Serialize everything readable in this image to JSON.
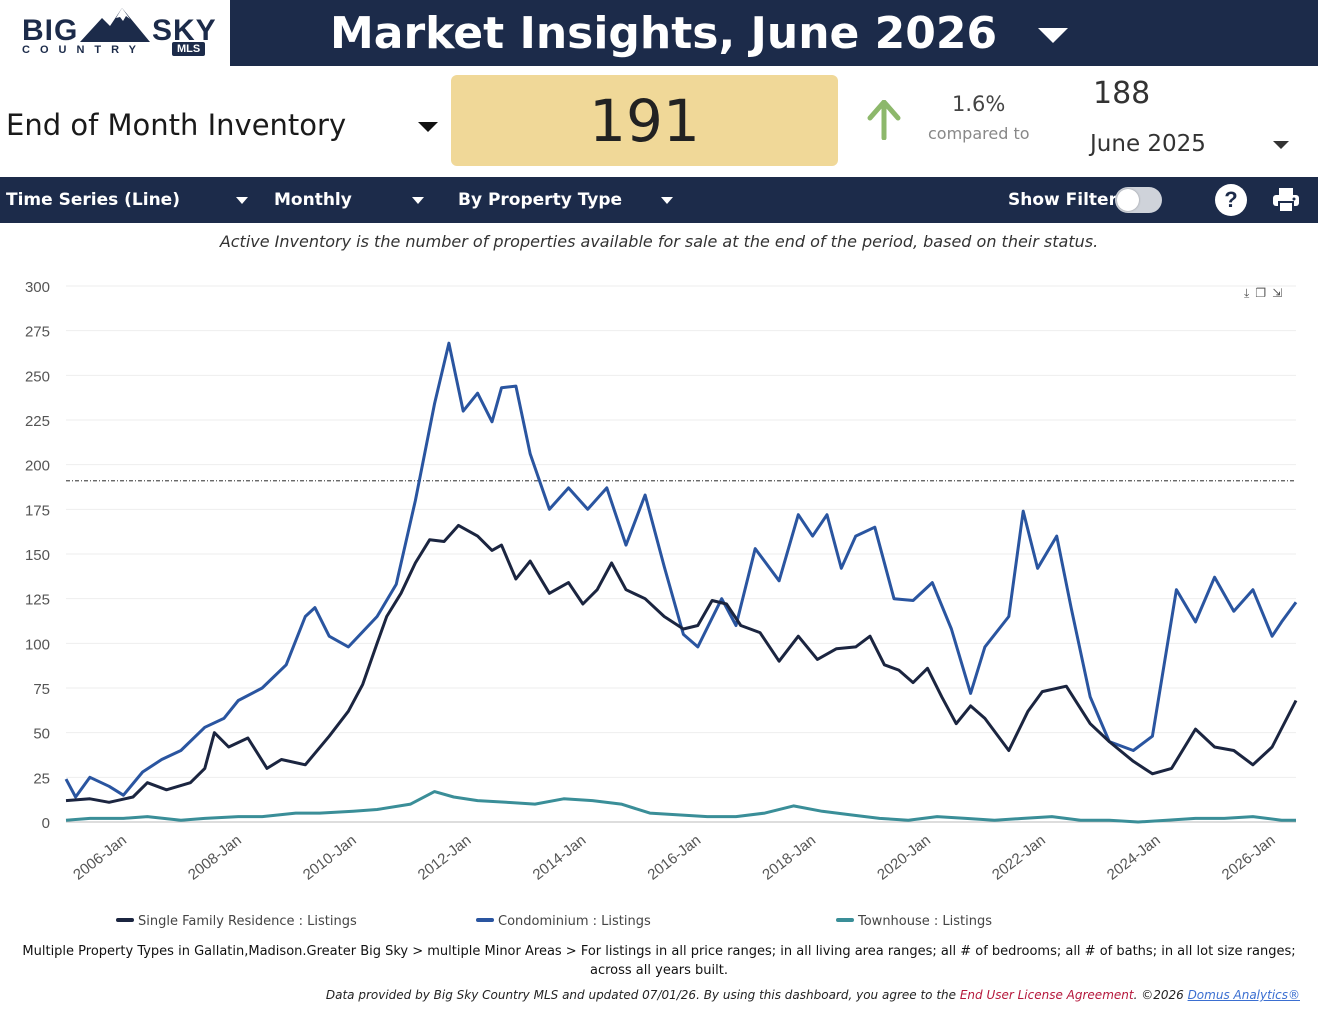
{
  "logo": {
    "big": "BIG",
    "sky": "SKY",
    "country": "COUNTRY",
    "mls": "MLS"
  },
  "header": {
    "title": "Market Insights, June 2026"
  },
  "metric": {
    "label": "End of Month Inventory",
    "value": "191",
    "change_pct": "1.6%",
    "compared_to": "compared to",
    "compare_value": "188",
    "compare_period": "June 2025"
  },
  "toolbar": {
    "chart_type": "Time Series (Line)",
    "interval": "Monthly",
    "grouping": "By Property Type",
    "show_filters": "Show Filters:",
    "help": "?"
  },
  "subtitle": "Active Inventory is the number of properties available for sale at the end of the period, based on their status.",
  "footer": {
    "description": "Multiple Property Types in Gallatin,Madison.Greater Big Sky > multiple Minor Areas > For listings in all price ranges; in all living area ranges; all # of bedrooms; all # of baths; in all lot size ranges; across all years built.",
    "credit_prefix": "Data provided by Big Sky Country MLS and updated 07/01/26.  By using this dashboard, you agree to the ",
    "eula": "End User License Agreement",
    "credit_mid": ".  ©2026 ",
    "domus": "Domus Analytics®"
  },
  "colors": {
    "navy": "#1c2b4a",
    "single_family": "#1b2540",
    "condominium": "#2a55a0",
    "townhouse": "#3a8e98",
    "value_box": "#f0d898",
    "arrow": "#8db86b"
  },
  "chart_data": {
    "type": "line",
    "ylim": [
      0,
      300
    ],
    "y_ticks": [
      0,
      25,
      50,
      75,
      100,
      125,
      150,
      175,
      200,
      225,
      250,
      275,
      300
    ],
    "x_tick_labels": [
      "2006-Jan",
      "2008-Jan",
      "2010-Jan",
      "2012-Jan",
      "2014-Jan",
      "2016-Jan",
      "2018-Jan",
      "2020-Jan",
      "2022-Jan",
      "2024-Jan",
      "2026-Jan"
    ],
    "x_start": "2005-Jan",
    "x_end": "2026-Jun",
    "reference_line": 191,
    "legend_position": "bottom",
    "series": [
      {
        "name": "Single Family Residence : Listings",
        "points": [
          [
            "2005-Jan",
            12
          ],
          [
            "2005-Jun",
            13
          ],
          [
            "2005-Oct",
            11
          ],
          [
            "2006-Mar",
            14
          ],
          [
            "2006-Jun",
            22
          ],
          [
            "2006-Oct",
            18
          ],
          [
            "2007-Mar",
            22
          ],
          [
            "2007-Jun",
            30
          ],
          [
            "2007-Aug",
            50
          ],
          [
            "2007-Nov",
            42
          ],
          [
            "2008-Mar",
            47
          ],
          [
            "2008-Jul",
            30
          ],
          [
            "2008-Oct",
            35
          ],
          [
            "2009-Mar",
            32
          ],
          [
            "2009-Aug",
            48
          ],
          [
            "2009-Dec",
            62
          ],
          [
            "2010-Mar",
            77
          ],
          [
            "2010-Jun",
            100
          ],
          [
            "2010-Aug",
            115
          ],
          [
            "2010-Nov",
            128
          ],
          [
            "2011-Feb",
            145
          ],
          [
            "2011-May",
            158
          ],
          [
            "2011-Aug",
            157
          ],
          [
            "2011-Nov",
            166
          ],
          [
            "2012-Mar",
            160
          ],
          [
            "2012-Jun",
            152
          ],
          [
            "2012-Aug",
            155
          ],
          [
            "2012-Nov",
            136
          ],
          [
            "2013-Feb",
            146
          ],
          [
            "2013-Jun",
            128
          ],
          [
            "2013-Oct",
            134
          ],
          [
            "2014-Jan",
            122
          ],
          [
            "2014-Apr",
            130
          ],
          [
            "2014-Jul",
            145
          ],
          [
            "2014-Oct",
            130
          ],
          [
            "2015-Feb",
            125
          ],
          [
            "2015-Jun",
            115
          ],
          [
            "2015-Oct",
            108
          ],
          [
            "2016-Jan",
            110
          ],
          [
            "2016-Apr",
            124
          ],
          [
            "2016-Jul",
            122
          ],
          [
            "2016-Oct",
            110
          ],
          [
            "2017-Feb",
            106
          ],
          [
            "2017-Jun",
            90
          ],
          [
            "2017-Oct",
            104
          ],
          [
            "2018-Feb",
            91
          ],
          [
            "2018-Jun",
            97
          ],
          [
            "2018-Oct",
            98
          ],
          [
            "2019-Jan",
            104
          ],
          [
            "2019-Apr",
            88
          ],
          [
            "2019-Jul",
            85
          ],
          [
            "2019-Oct",
            78
          ],
          [
            "2020-Jan",
            86
          ],
          [
            "2020-Apr",
            70
          ],
          [
            "2020-Jul",
            55
          ],
          [
            "2020-Oct",
            65
          ],
          [
            "2021-Jan",
            58
          ],
          [
            "2021-Jun",
            40
          ],
          [
            "2021-Oct",
            62
          ],
          [
            "2022-Jan",
            73
          ],
          [
            "2022-Jun",
            76
          ],
          [
            "2022-Nov",
            55
          ],
          [
            "2023-Mar",
            45
          ],
          [
            "2023-Aug",
            34
          ],
          [
            "2023-Dec",
            27
          ],
          [
            "2024-Apr",
            30
          ],
          [
            "2024-Sep",
            52
          ],
          [
            "2025-Jan",
            42
          ],
          [
            "2025-May",
            40
          ],
          [
            "2025-Sep",
            32
          ],
          [
            "2026-Jan",
            42
          ],
          [
            "2026-Jun",
            68
          ]
        ]
      },
      {
        "name": "Condominium : Listings",
        "points": [
          [
            "2005-Jan",
            24
          ],
          [
            "2005-Mar",
            14
          ],
          [
            "2005-Jun",
            25
          ],
          [
            "2005-Oct",
            20
          ],
          [
            "2006-Jan",
            15
          ],
          [
            "2006-May",
            28
          ],
          [
            "2006-Sep",
            35
          ],
          [
            "2007-Jan",
            40
          ],
          [
            "2007-Jun",
            53
          ],
          [
            "2007-Oct",
            58
          ],
          [
            "2008-Jan",
            68
          ],
          [
            "2008-Jun",
            75
          ],
          [
            "2008-Nov",
            88
          ],
          [
            "2009-Mar",
            115
          ],
          [
            "2009-May",
            120
          ],
          [
            "2009-Aug",
            104
          ],
          [
            "2009-Dec",
            98
          ],
          [
            "2010-Jun",
            115
          ],
          [
            "2010-Oct",
            133
          ],
          [
            "2011-Feb",
            180
          ],
          [
            "2011-Jun",
            234
          ],
          [
            "2011-Sep",
            268
          ],
          [
            "2011-Dec",
            230
          ],
          [
            "2012-Mar",
            240
          ],
          [
            "2012-Jun",
            224
          ],
          [
            "2012-Aug",
            243
          ],
          [
            "2012-Nov",
            244
          ],
          [
            "2013-Feb",
            206
          ],
          [
            "2013-Jun",
            175
          ],
          [
            "2013-Oct",
            187
          ],
          [
            "2014-Feb",
            175
          ],
          [
            "2014-Jun",
            187
          ],
          [
            "2014-Oct",
            155
          ],
          [
            "2015-Feb",
            183
          ],
          [
            "2015-Jun",
            143
          ],
          [
            "2015-Oct",
            105
          ],
          [
            "2016-Jan",
            98
          ],
          [
            "2016-Jun",
            125
          ],
          [
            "2016-Sep",
            110
          ],
          [
            "2017-Jan",
            153
          ],
          [
            "2017-Jun",
            135
          ],
          [
            "2017-Oct",
            172
          ],
          [
            "2018-Jan",
            160
          ],
          [
            "2018-Apr",
            172
          ],
          [
            "2018-Jul",
            142
          ],
          [
            "2018-Oct",
            160
          ],
          [
            "2019-Feb",
            165
          ],
          [
            "2019-Jun",
            125
          ],
          [
            "2019-Oct",
            124
          ],
          [
            "2020-Feb",
            134
          ],
          [
            "2020-Jun",
            108
          ],
          [
            "2020-Oct",
            72
          ],
          [
            "2021-Jan",
            98
          ],
          [
            "2021-Jun",
            115
          ],
          [
            "2021-Sep",
            174
          ],
          [
            "2021-Dec",
            142
          ],
          [
            "2022-Apr",
            160
          ],
          [
            "2022-Jul",
            120
          ],
          [
            "2022-Nov",
            70
          ],
          [
            "2023-Mar",
            45
          ],
          [
            "2023-Aug",
            40
          ],
          [
            "2023-Dec",
            48
          ],
          [
            "2024-May",
            130
          ],
          [
            "2024-Sep",
            112
          ],
          [
            "2025-Jan",
            137
          ],
          [
            "2025-May",
            118
          ],
          [
            "2025-Sep",
            130
          ],
          [
            "2026-Jan",
            104
          ],
          [
            "2026-Mar",
            112
          ],
          [
            "2026-Jun",
            123
          ]
        ]
      },
      {
        "name": "Townhouse : Listings",
        "points": [
          [
            "2005-Jan",
            1
          ],
          [
            "2005-Jun",
            2
          ],
          [
            "2006-Jan",
            2
          ],
          [
            "2006-Jun",
            3
          ],
          [
            "2007-Jan",
            1
          ],
          [
            "2007-Jun",
            2
          ],
          [
            "2008-Jan",
            3
          ],
          [
            "2008-Jun",
            3
          ],
          [
            "2009-Jan",
            5
          ],
          [
            "2009-Jun",
            5
          ],
          [
            "2010-Jan",
            6
          ],
          [
            "2010-Jun",
            7
          ],
          [
            "2011-Jan",
            10
          ],
          [
            "2011-Jun",
            17
          ],
          [
            "2011-Oct",
            14
          ],
          [
            "2012-Mar",
            12
          ],
          [
            "2012-Sep",
            11
          ],
          [
            "2013-Mar",
            10
          ],
          [
            "2013-Sep",
            13
          ],
          [
            "2014-Mar",
            12
          ],
          [
            "2014-Sep",
            10
          ],
          [
            "2015-Mar",
            5
          ],
          [
            "2015-Sep",
            4
          ],
          [
            "2016-Mar",
            3
          ],
          [
            "2016-Sep",
            3
          ],
          [
            "2017-Mar",
            5
          ],
          [
            "2017-Sep",
            9
          ],
          [
            "2018-Mar",
            6
          ],
          [
            "2018-Sep",
            4
          ],
          [
            "2019-Mar",
            2
          ],
          [
            "2019-Sep",
            1
          ],
          [
            "2020-Mar",
            3
          ],
          [
            "2020-Sep",
            2
          ],
          [
            "2021-Mar",
            1
          ],
          [
            "2021-Sep",
            2
          ],
          [
            "2022-Mar",
            3
          ],
          [
            "2022-Sep",
            1
          ],
          [
            "2023-Mar",
            1
          ],
          [
            "2023-Sep",
            0
          ],
          [
            "2024-Mar",
            1
          ],
          [
            "2024-Sep",
            2
          ],
          [
            "2025-Mar",
            2
          ],
          [
            "2025-Sep",
            3
          ],
          [
            "2026-Mar",
            1
          ],
          [
            "2026-Jun",
            1
          ]
        ]
      }
    ]
  }
}
